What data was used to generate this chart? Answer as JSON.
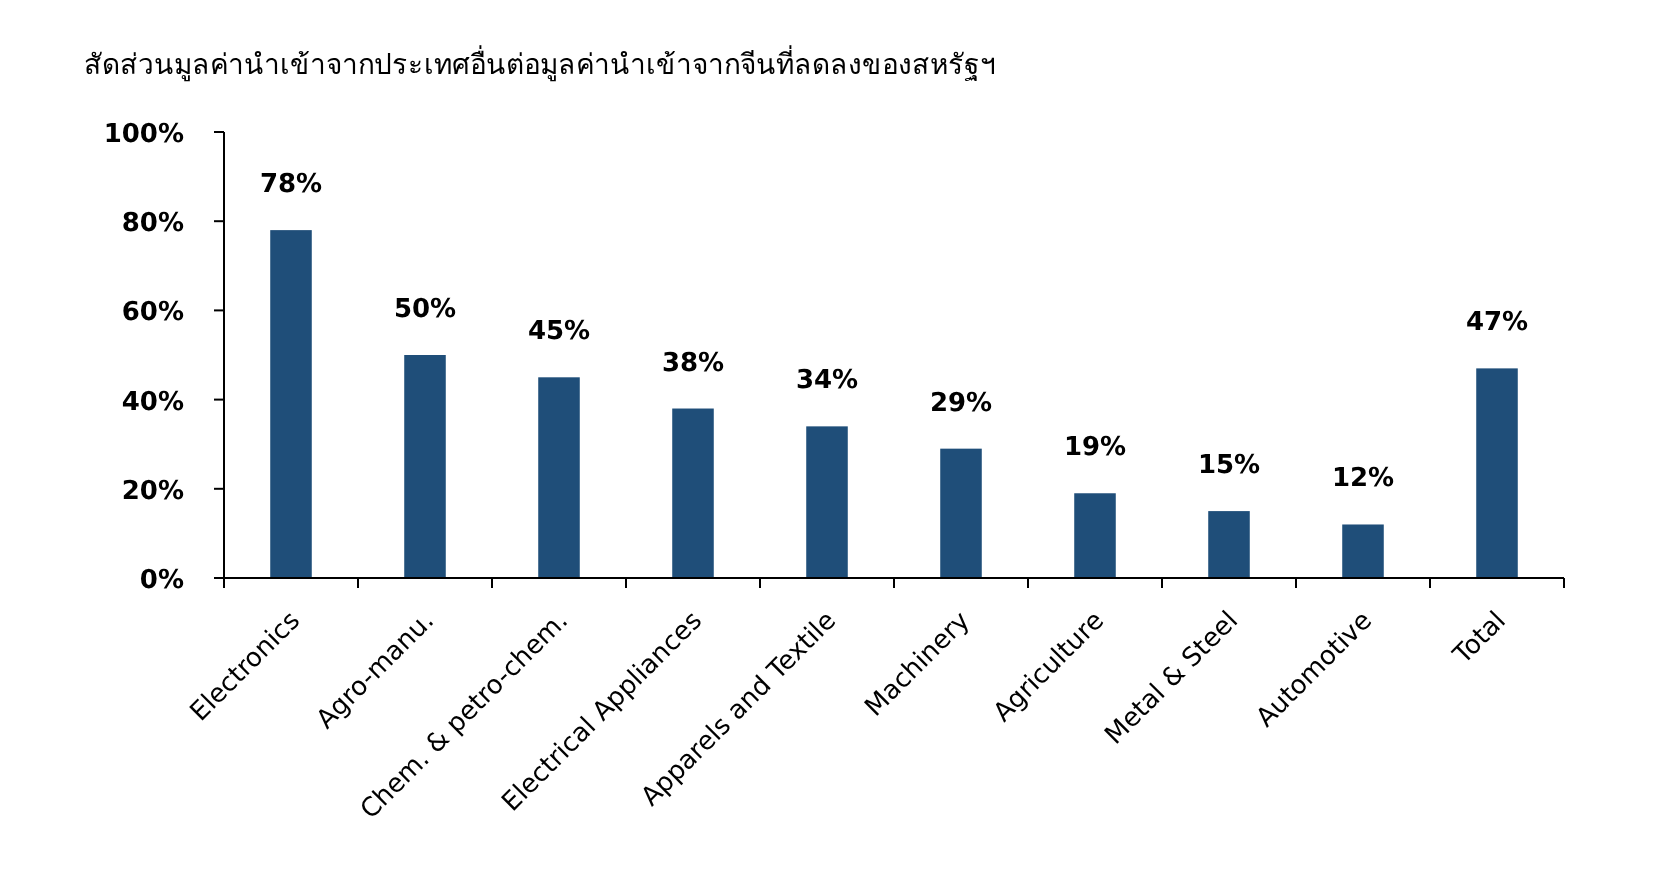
{
  "chart_data": {
    "type": "bar",
    "title": "สัดส่วนมูลค่านำเข้าจากประเทศอื่นต่อมูลค่านำเข้าจากจีนที่ลดลงของสหรัฐฯ",
    "categories": [
      "Electronics",
      "Agro-manu.",
      "Chem. & petro-chem.",
      "Electrical Appliances",
      "Apparels and Textile",
      "Machinery",
      "Agriculture",
      "Metal & Steel",
      "Automotive",
      "Total"
    ],
    "values": [
      78,
      50,
      45,
      38,
      34,
      29,
      19,
      15,
      12,
      47
    ],
    "value_labels": [
      "78%",
      "50%",
      "45%",
      "38%",
      "34%",
      "29%",
      "19%",
      "15%",
      "12%",
      "47%"
    ],
    "color": "#1f4e79",
    "ylim": [
      0,
      100
    ],
    "yticks": [
      {
        "value": 0,
        "label": "0%"
      },
      {
        "value": 20,
        "label": "20%"
      },
      {
        "value": 40,
        "label": "40%"
      },
      {
        "value": 60,
        "label": "60%"
      },
      {
        "value": 80,
        "label": "80%"
      },
      {
        "value": 100,
        "label": "100%"
      }
    ],
    "grid": false
  }
}
